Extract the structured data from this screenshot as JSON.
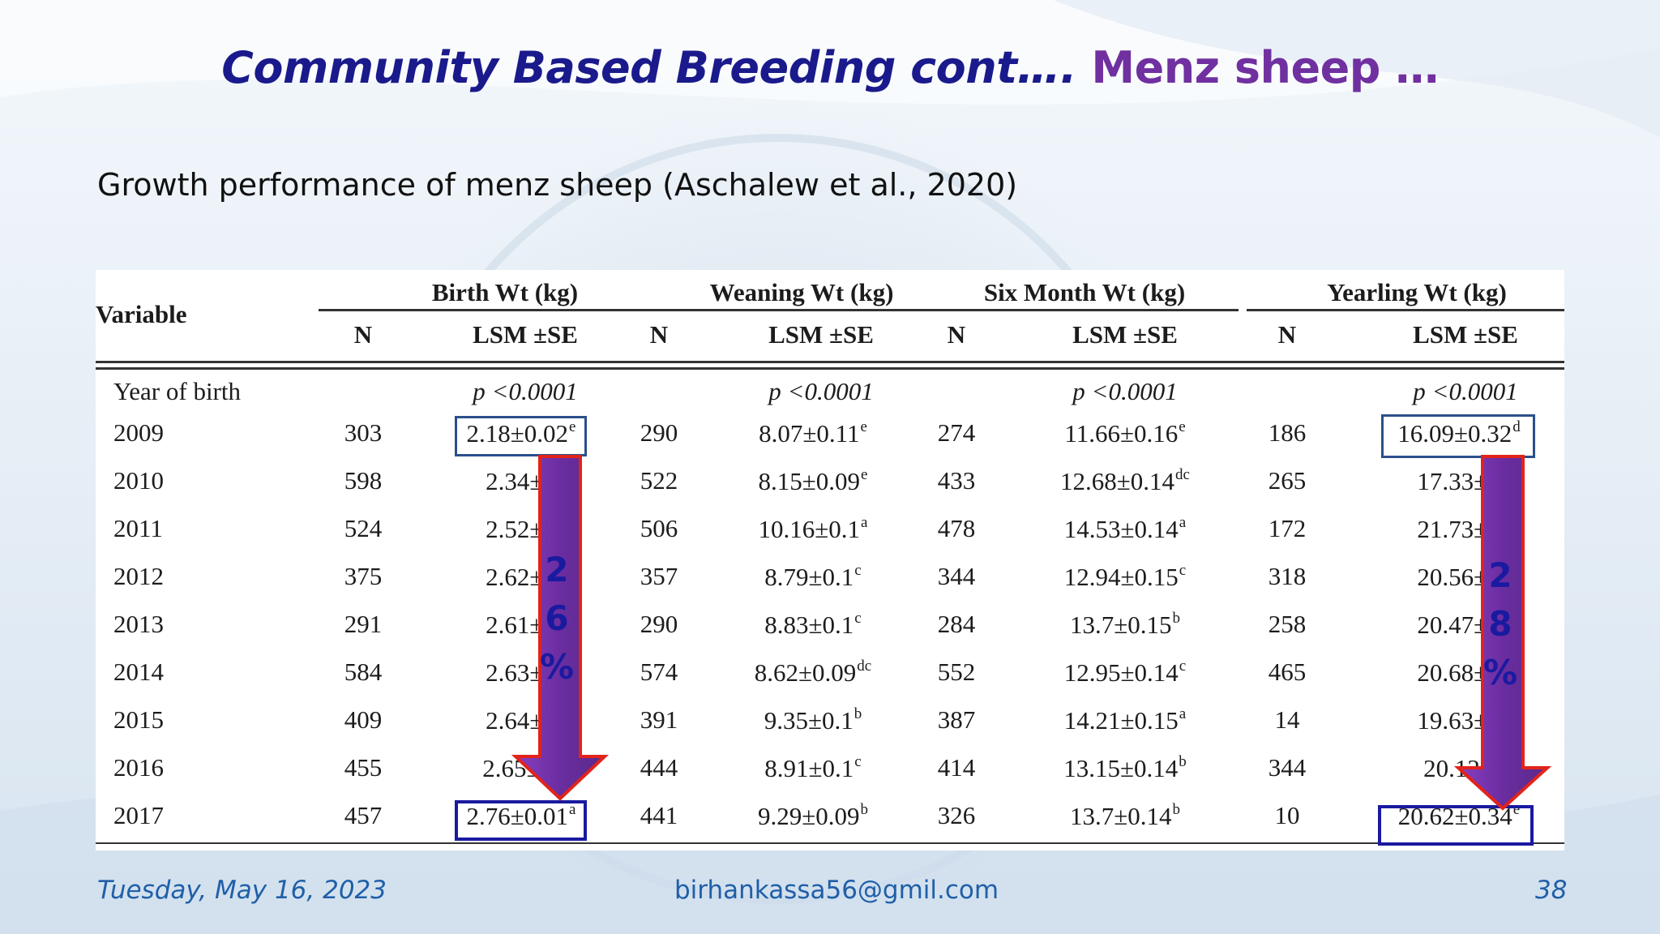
{
  "slide": {
    "title_main": "Community Based Breeding cont….",
    "title_sub": "Menz sheep …",
    "subtitle": "Growth performance of menz sheep (Aschalew et al., 2020)",
    "footer_date": "Tuesday, May 16, 2023",
    "footer_email": "birhankassa56@gmil.com",
    "footer_page": "38",
    "colors": {
      "title": "#1a1a8c",
      "title_sub": "#7030a0",
      "footer": "#1f5fa8",
      "arrow": "#6a2da0",
      "box": "#2b4f8c"
    }
  },
  "table": {
    "variable_header": "Variable",
    "groups": [
      "Birth Wt (kg)",
      "Weaning Wt (kg)",
      "Six Month Wt (kg)",
      "Yearling Wt (kg)"
    ],
    "sub_n": "N",
    "sub_lsm": "LSM ±SE",
    "section_label": "Year of birth",
    "pvalue": "p <0.0001",
    "rows": [
      {
        "year": "2009",
        "c": [
          {
            "n": "303",
            "v": "2.18±0.02",
            "s": "e"
          },
          {
            "n": "290",
            "v": "8.07±0.11",
            "s": "e"
          },
          {
            "n": "274",
            "v": "11.66±0.16",
            "s": "e"
          },
          {
            "n": "186",
            "v": "16.09±0.32",
            "s": "d"
          }
        ]
      },
      {
        "year": "2010",
        "c": [
          {
            "n": "598",
            "v": "2.34±0",
            "s": ""
          },
          {
            "n": "522",
            "v": "8.15±0.09",
            "s": "e"
          },
          {
            "n": "433",
            "v": "12.68±0.14",
            "s": "dc"
          },
          {
            "n": "265",
            "v": "17.33±0",
            "s": ""
          }
        ]
      },
      {
        "year": "2011",
        "c": [
          {
            "n": "524",
            "v": "2.52±0",
            "s": ""
          },
          {
            "n": "506",
            "v": "10.16±0.1",
            "s": "a"
          },
          {
            "n": "478",
            "v": "14.53±0.14",
            "s": "a"
          },
          {
            "n": "172",
            "v": "21.73±0",
            "s": ""
          }
        ]
      },
      {
        "year": "2012",
        "c": [
          {
            "n": "375",
            "v": "2.62±0",
            "s": ""
          },
          {
            "n": "357",
            "v": "8.79±0.1",
            "s": "c"
          },
          {
            "n": "344",
            "v": "12.94±0.15",
            "s": "c"
          },
          {
            "n": "318",
            "v": "20.56±0",
            "s": ""
          }
        ]
      },
      {
        "year": "2013",
        "c": [
          {
            "n": "291",
            "v": "2.61±0",
            "s": ""
          },
          {
            "n": "290",
            "v": "8.83±0.1",
            "s": "c"
          },
          {
            "n": "284",
            "v": "13.7±0.15",
            "s": "b"
          },
          {
            "n": "258",
            "v": "20.47±0",
            "s": ""
          }
        ]
      },
      {
        "year": "2014",
        "c": [
          {
            "n": "584",
            "v": "2.63±0",
            "s": ""
          },
          {
            "n": "574",
            "v": "8.62±0.09",
            "s": "dc"
          },
          {
            "n": "552",
            "v": "12.95±0.14",
            "s": "c"
          },
          {
            "n": "465",
            "v": "20.68±0",
            "s": ""
          }
        ]
      },
      {
        "year": "2015",
        "c": [
          {
            "n": "409",
            "v": "2.64±0",
            "s": ""
          },
          {
            "n": "391",
            "v": "9.35±0.1",
            "s": "b"
          },
          {
            "n": "387",
            "v": "14.21±0.15",
            "s": "a"
          },
          {
            "n": "14",
            "v": "19.63±0",
            "s": ""
          }
        ]
      },
      {
        "year": "2016",
        "c": [
          {
            "n": "455",
            "v": "2.65±0.",
            "s": ""
          },
          {
            "n": "444",
            "v": "8.91±0.1",
            "s": "c"
          },
          {
            "n": "414",
            "v": "13.15±0.14",
            "s": "b"
          },
          {
            "n": "344",
            "v": "20.12±",
            "s": ""
          }
        ]
      },
      {
        "year": "2017",
        "c": [
          {
            "n": "457",
            "v": "2.76±0.01",
            "s": "a"
          },
          {
            "n": "441",
            "v": "9.29±0.09",
            "s": "b"
          },
          {
            "n": "326",
            "v": "13.7±0.14",
            "s": "b"
          },
          {
            "n": "10",
            "v": "20.62±0.34",
            "s": "e"
          }
        ]
      }
    ]
  },
  "callouts": {
    "birth_chars": [
      "2",
      "6",
      "%"
    ],
    "yearling_chars": [
      "2",
      "8",
      "%"
    ]
  }
}
